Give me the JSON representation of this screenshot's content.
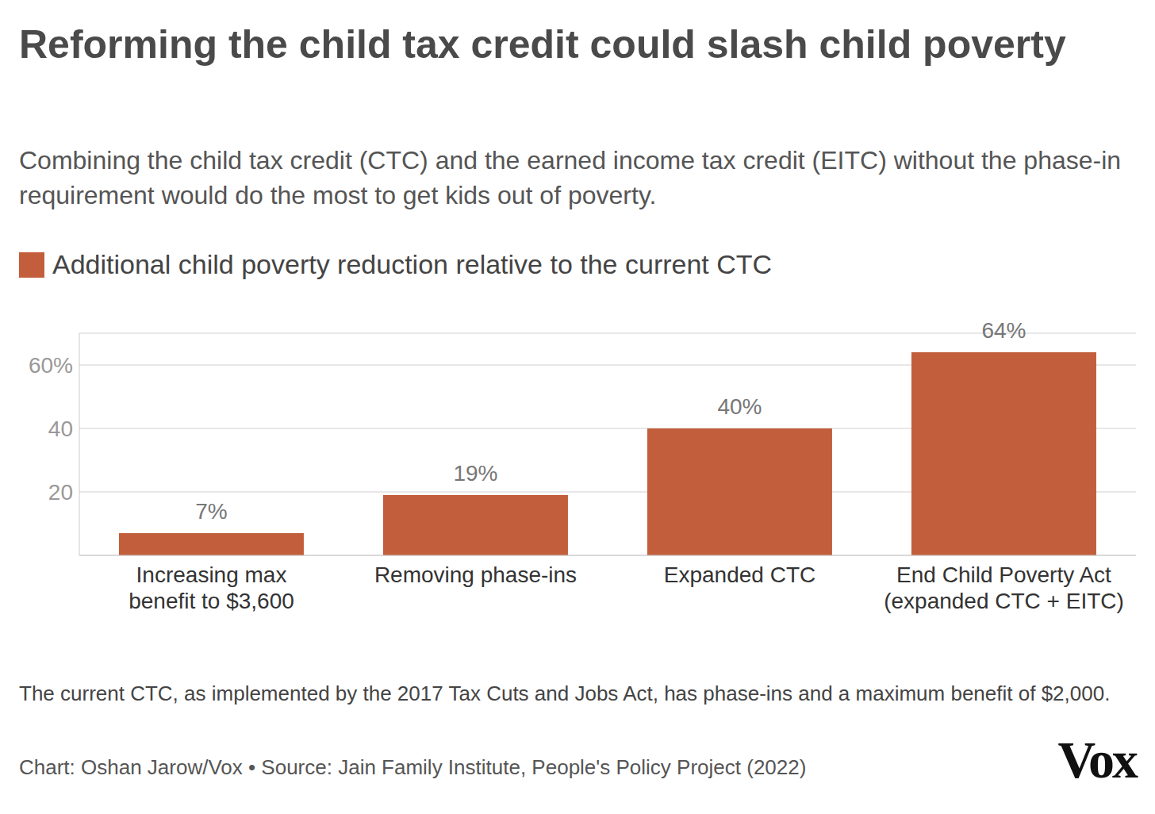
{
  "chart_data": {
    "type": "bar",
    "title": "Reforming the child tax credit could slash child poverty",
    "subtitle": "Combining the child tax credit (CTC) and the earned income tax credit (EITC) without the phase-in requirement would do the most to get kids out of poverty.",
    "categories": [
      "Increasing max benefit to $3,600",
      "Removing phase-ins",
      "Expanded CTC",
      "End Child Poverty Act (expanded CTC + EITC)"
    ],
    "series": [
      {
        "name": "Additional child poverty reduction relative to the current CTC",
        "color": "#c25e3b",
        "values": [
          7,
          19,
          40,
          64
        ],
        "value_labels": [
          "7%",
          "19%",
          "40%",
          "64%"
        ]
      }
    ],
    "ylim": [
      0,
      70
    ],
    "yticks": [
      20,
      40,
      {
        "value": 60,
        "label": "60%"
      }
    ],
    "grid": true,
    "data_labels": true,
    "legend": "top-left",
    "note": "The current CTC, as implemented by the 2017 Tax Cuts and Jobs Act, has phase-ins and a maximum benefit of $2,000.",
    "source": "Chart: Oshan Jarow/Vox • Source: Jain Family Institute, People's Policy Project (2022)",
    "logo": "Vox"
  }
}
